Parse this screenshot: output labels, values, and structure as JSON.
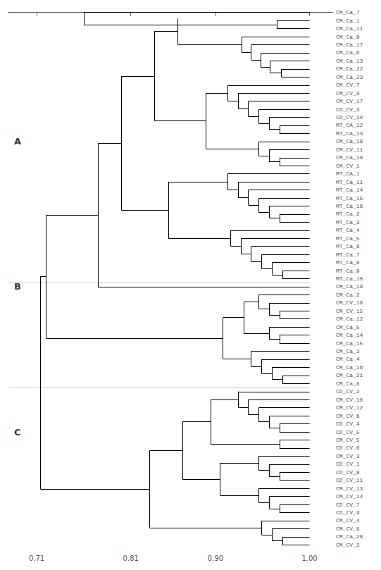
{
  "chart_data": {
    "type": "dendrogram",
    "leaves": [
      "CM_Ca_7",
      "CM_Ca_1",
      "CM_Ca_11",
      "CM_Ca_9",
      "CM_Ca_17",
      "CM_Ca_6",
      "CM_Ca_13",
      "CM_Ca_22",
      "CM_Ca_23",
      "CM_CV_7",
      "CM_CV_9",
      "CM_CV_17",
      "CD_CV_3",
      "CD_CV_10",
      "MT_CA_12",
      "MT_CA_13",
      "CM_Ca_18",
      "CM_CV_11",
      "CM_Ca_10",
      "CM_CV_1",
      "MT_CA_1",
      "MT_Ca_11",
      "MT_Ca_14",
      "MT_Ca_15",
      "MT_Ca_16",
      "MT_Ca_2",
      "MT_Ca_3",
      "MT_Ca_4",
      "MT_Ca_5",
      "MT_Ca_6",
      "MT_Ca_7",
      "MT_Ca_8",
      "MT_Ca_9",
      "MT_Ca_10",
      "CM_Ca_19",
      "CM_Ca_2",
      "CM_CV_16",
      "CM_CV_15",
      "CM_Ca_12",
      "CM_Ca_5",
      "CM_Ca_14",
      "CM_Ca_15",
      "CM_Ca_3",
      "CM_Ca_4",
      "CM_Ca_16",
      "CM_Ca_21",
      "CM_Ca_8",
      "CD_CV_2",
      "CM_CV_10",
      "CM_CV_12",
      "CM_CV_6",
      "CD_CV_4",
      "CD_CV_5",
      "CM_CV_5",
      "CD_CV_6",
      "CM_CV_3",
      "CD_CV_1",
      "CD_CV_8",
      "CD_CV_11",
      "CM_CV_13",
      "CM_CV_14",
      "CD_CV_7",
      "CD_CV_9",
      "CM_CV_4",
      "CM_CV_8",
      "CM_Ca_28",
      "CM_CV_2"
    ],
    "tree": [
      [
        [
          [
            [
              [
                [
                  "CM_Ca_7",
                  [
                    "CM_Ca_1",
                    "CM_Ca_11",
                    0.965
                  ],
                  0.76
                ],
                [
                  "CM_Ca_9",
                  [
                    "CM_Ca_17",
                    [
                      "CM_Ca_6",
                      [
                        "CM_Ca_13",
                        [
                          "CM_Ca_22",
                          "CM_Ca_23",
                          0.97
                        ],
                        0.958
                      ],
                      0.948
                    ],
                    0.938
                  ],
                  0.928
                ],
                0.86
              ],
              [
                [
                  "CM_CV_7",
                  [
                    "CM_CV_9",
                    [
                      "CM_CV_17",
                      [
                        "CD_CV_3",
                        [
                          "CD_CV_10",
                          [
                            "MT_CA_12",
                            "MT_CA_13",
                            0.968
                          ],
                          0.957
                        ],
                        0.946
                      ],
                      0.935
                    ],
                    0.924
                  ],
                  0.913
                ],
                [
                  "CM_Ca_18",
                  [
                    "CM_CV_11",
                    [
                      "CM_Ca_10",
                      "CM_CV_1",
                      0.968
                    ],
                    0.957
                  ],
                  0.946
                ],
                0.89
              ],
              0.835
            ],
            [
              [
                "MT_CA_1",
                [
                  "MT_Ca_11",
                  [
                    "MT_Ca_14",
                    [
                      "MT_Ca_15",
                      [
                        "MT_Ca_16",
                        [
                          "MT_Ca_2",
                          "MT_Ca_3",
                          0.968
                        ],
                        0.957
                      ],
                      0.946
                    ],
                    0.935
                  ],
                  0.924
                ],
                0.913
              ],
              [
                "MT_Ca_4",
                [
                  "MT_Ca_5",
                  [
                    "MT_Ca_6",
                    [
                      "MT_Ca_7",
                      [
                        "MT_Ca_8",
                        [
                          "MT_Ca_9",
                          "MT_Ca_10",
                          0.971
                        ],
                        0.96
                      ],
                      0.949
                    ],
                    0.938
                  ],
                  0.927
                ],
                0.916
              ],
              0.85
            ],
            0.8
          ],
          "CM_Ca_19",
          0.775
        ],
        [
          [
            [
              "CM_Ca_2",
              [
                "CM_CV_16",
                [
                  "CM_CV_15",
                  "CM_Ca_12",
                  0.968
                ],
                0.957
              ],
              0.946
            ],
            [
              "CM_Ca_5",
              [
                "CM_Ca_14",
                "CM_Ca_15",
                0.968
              ],
              0.957
            ],
            0.93
          ],
          [
            "CM_Ca_3",
            [
              "CM_Ca_4",
              [
                "CM_Ca_16",
                [
                  "CM_Ca_21",
                  "CM_Ca_8",
                  0.971
                ],
                0.96
              ],
              0.949
            ],
            0.938
          ],
          0.908
        ],
        0.72
      ],
      [
        [
          [
            [
              "CD_CV_2",
              [
                "CM_CV_10",
                [
                  "CM_CV_12",
                  [
                    "CM_CV_6",
                    [
                      "CD_CV_4",
                      "CD_CV_5",
                      0.968
                    ],
                    0.957
                  ],
                  0.946
                ],
                0.935
              ],
              0.924
            ],
            [
              "CM_CV_5",
              "CD_CV_6",
              0.968
            ],
            0.895
          ],
          [
            [
              "CM_CV_3",
              [
                "CD_CV_1",
                [
                  "CD_CV_8",
                  "CD_CV_11",
                  0.968
                ],
                0.957
              ],
              0.946
            ],
            [
              "CM_CV_13",
              [
                "CM_CV_14",
                [
                  "CD_CV_7",
                  "CD_CV_9",
                  0.968
                ],
                0.957
              ],
              0.946
            ],
            0.905
          ],
          0.865
        ],
        [
          "CM_CV_4",
          [
            "CM_CV_8",
            [
              "CM_Ca_28",
              "CM_CV_2",
              0.971
            ],
            0.96
          ],
          0.949
        ],
        0.83
      ],
      0.714
    ],
    "leaf_height": 1.0,
    "xlim": [
      0.68,
      1.025
    ],
    "xticks": [
      0.71,
      0.81,
      {
        "value": 0.9,
        "label": "0.90"
      },
      {
        "value": 1.0,
        "label": "1.00"
      }
    ],
    "color": "#000000",
    "grid": false,
    "annotations": [
      {
        "text": "A",
        "leaf": "CM_Ca_18"
      },
      {
        "text": "B",
        "leaf": "CM_Ca_19"
      },
      {
        "text": "C",
        "leaf": "CD_CV_5"
      }
    ],
    "separators": [
      [
        "MT_Ca_10",
        "CM_Ca_19"
      ],
      [
        "CM_Ca_8",
        "CD_CV_2"
      ]
    ]
  }
}
